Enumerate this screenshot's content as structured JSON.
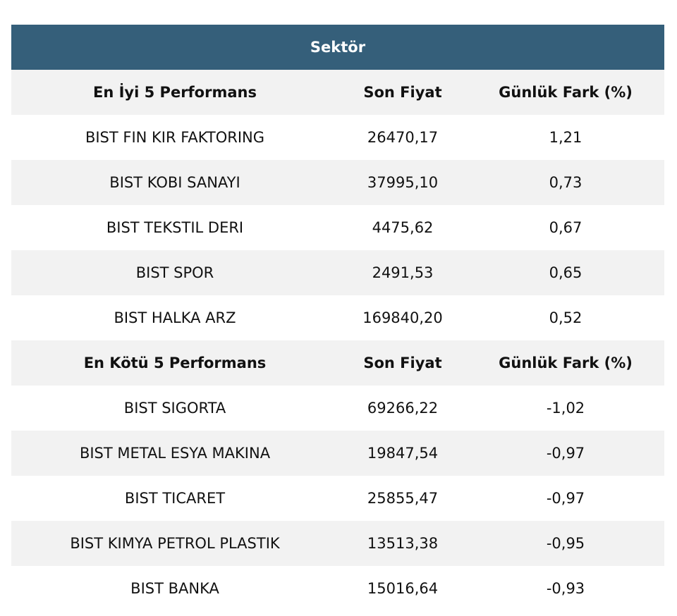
{
  "table": {
    "title": "Sektör",
    "sections": [
      {
        "header": [
          "En İyi 5 Performans",
          "Son Fiyat",
          "Günlük Fark (%)"
        ],
        "rows": [
          [
            "BIST FIN KIR FAKTORING",
            "26470,17",
            "1,21"
          ],
          [
            "BIST KOBI SANAYI",
            "37995,10",
            "0,73"
          ],
          [
            "BIST TEKSTIL DERI",
            "4475,62",
            "0,67"
          ],
          [
            "BIST SPOR",
            "2491,53",
            "0,65"
          ],
          [
            "BIST HALKA ARZ",
            "169840,20",
            "0,52"
          ]
        ]
      },
      {
        "header": [
          "En Kötü 5 Performans",
          "Son Fiyat",
          "Günlük Fark (%)"
        ],
        "rows": [
          [
            "BIST SIGORTA",
            "69266,22",
            "-1,02"
          ],
          [
            "BIST METAL ESYA MAKINA",
            "19847,54",
            "-0,97"
          ],
          [
            "BIST TICARET",
            "25855,47",
            "-0,97"
          ],
          [
            "BIST KIMYA PETROL PLASTIK",
            "13513,38",
            "-0,95"
          ],
          [
            "BIST BANKA",
            "15016,64",
            "-0,93"
          ]
        ]
      }
    ]
  }
}
